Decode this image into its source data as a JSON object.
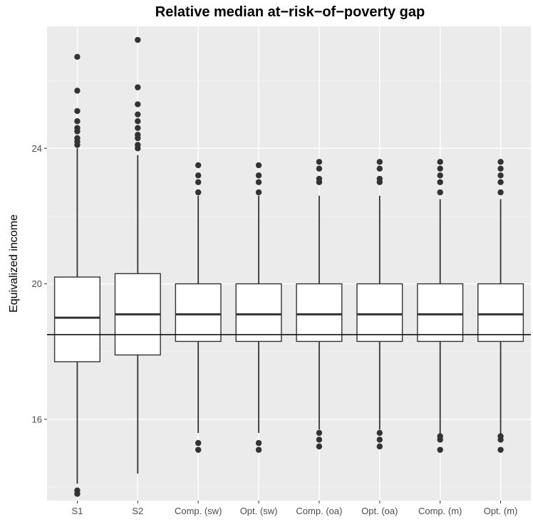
{
  "chart_data": {
    "type": "boxplot",
    "title": "Relative median at−risk−of−poverty gap",
    "xlabel": "",
    "ylabel": "Equivalized income",
    "ylim": [
      13.6,
      27.6
    ],
    "yticks": [
      16,
      20,
      24
    ],
    "ytick_labels": [
      "16",
      "20",
      "24"
    ],
    "grid": true,
    "reference_line": 18.5,
    "categories": [
      "S1",
      "S2",
      "Comp. (sw)",
      "Opt. (sw)",
      "Comp. (oa)",
      "Opt. (oa)",
      "Comp. (m)",
      "Opt. (m)"
    ],
    "boxes": [
      {
        "category": "S1",
        "whisker_low": 14.1,
        "q1": 17.7,
        "median": 19.0,
        "q3": 20.2,
        "whisker_high": 24.0,
        "outliers": [
          13.8,
          13.9,
          24.1,
          24.2,
          24.3,
          24.5,
          24.6,
          24.8,
          25.1,
          25.7,
          26.7
        ]
      },
      {
        "category": "S2",
        "whisker_low": 14.4,
        "q1": 17.9,
        "median": 19.1,
        "q3": 20.3,
        "whisker_high": 23.8,
        "outliers": [
          24.0,
          24.1,
          24.3,
          24.4,
          24.6,
          24.8,
          25.0,
          25.3,
          25.8,
          27.2
        ]
      },
      {
        "category": "Comp. (sw)",
        "whisker_low": 15.6,
        "q1": 18.3,
        "median": 19.1,
        "q3": 20.0,
        "whisker_high": 22.6,
        "outliers": [
          15.1,
          15.3,
          22.7,
          23.0,
          23.2,
          23.5
        ]
      },
      {
        "category": "Opt. (sw)",
        "whisker_low": 15.6,
        "q1": 18.3,
        "median": 19.1,
        "q3": 20.0,
        "whisker_high": 22.6,
        "outliers": [
          15.1,
          15.3,
          22.7,
          23.0,
          23.2,
          23.5
        ]
      },
      {
        "category": "Comp. (oa)",
        "whisker_low": 15.7,
        "q1": 18.3,
        "median": 19.1,
        "q3": 20.0,
        "whisker_high": 22.6,
        "outliers": [
          15.2,
          15.4,
          15.6,
          23.0,
          23.1,
          23.4,
          23.6
        ]
      },
      {
        "category": "Opt. (oa)",
        "whisker_low": 15.7,
        "q1": 18.3,
        "median": 19.1,
        "q3": 20.0,
        "whisker_high": 22.6,
        "outliers": [
          15.2,
          15.4,
          15.6,
          23.0,
          23.1,
          23.4,
          23.6
        ]
      },
      {
        "category": "Comp. (m)",
        "whisker_low": 15.5,
        "q1": 18.3,
        "median": 19.1,
        "q3": 20.0,
        "whisker_high": 22.5,
        "outliers": [
          15.1,
          15.4,
          15.5,
          22.7,
          23.0,
          23.2,
          23.4,
          23.6
        ]
      },
      {
        "category": "Opt. (m)",
        "whisker_low": 15.5,
        "q1": 18.3,
        "median": 19.1,
        "q3": 20.0,
        "whisker_high": 22.5,
        "outliers": [
          15.1,
          15.4,
          15.5,
          22.7,
          23.0,
          23.2,
          23.4,
          23.6
        ]
      }
    ],
    "colors": {
      "panel_bg": "#ebebeb",
      "grid_major": "#ffffff",
      "grid_minor": "#f5f5f5",
      "box_fill": "#ffffff",
      "box_stroke": "#333333",
      "outlier": "#333333",
      "reference_line": "#000000",
      "tick_text": "#4d4d4d"
    }
  }
}
